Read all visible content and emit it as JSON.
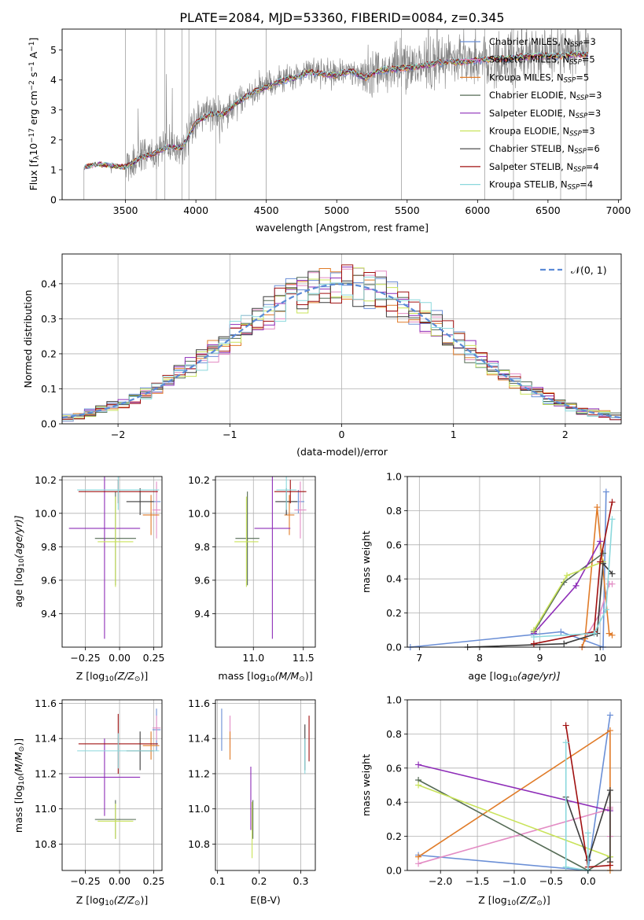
{
  "figure": {
    "title": "PLATE=2084, MJD=53360, FIBERID=0084, z=0.345"
  },
  "colors": {
    "Chabrier MILES": "#6b8fd6",
    "Salpeter MILES": "#e38cc4",
    "Kroupa MILES": "#e07b28",
    "Chabrier ELODIE": "#556b55",
    "Salpeter ELODIE": "#8e2db8",
    "Kroupa ELODIE": "#c9e35a",
    "Chabrier STELIB": "#3c3c3c",
    "Salpeter STELIB": "#a01010",
    "Kroupa STELIB": "#8ad8dc",
    "data": "#808080",
    "gaussian": "#5b8ad6"
  },
  "chart_data": [
    {
      "id": "spectrum",
      "type": "line",
      "xlabel": "wavelength [Angstrom, rest frame]",
      "ylabel": "Flux [f",
      "ylabel_sub": "λ",
      "ylabel_rest": "10",
      "ylabel_sup1": "−17",
      "ylabel_rest2": " erg cm",
      "ylabel_sup2": "−2",
      "ylabel_rest3": " s",
      "ylabel_sup3": "−1",
      "ylabel_rest4": " A",
      "ylabel_sup4": "−1",
      "ylabel_end": "]",
      "xlim": [
        3050,
        7020
      ],
      "ylim": [
        0,
        5.7
      ],
      "xticks": [
        "3500",
        "4000",
        "4500",
        "5000",
        "5500",
        "6000",
        "6500",
        "7000"
      ],
      "yticks": [
        "0",
        "1",
        "2",
        "3",
        "4",
        "5"
      ],
      "legend": [
        {
          "name": "Chabrier MILES",
          "n": "3"
        },
        {
          "name": "Salpeter MILES",
          "n": "5"
        },
        {
          "name": "Kroupa MILES",
          "n": "5"
        },
        {
          "name": "Chabrier ELODIE",
          "n": "3"
        },
        {
          "name": "Salpeter ELODIE",
          "n": "3"
        },
        {
          "name": "Kroupa ELODIE",
          "n": "3"
        },
        {
          "name": "Chabrier STELIB",
          "n": "6"
        },
        {
          "name": "Salpeter STELIB",
          "n": "4"
        },
        {
          "name": "Kroupa STELIB",
          "n": "4"
        }
      ],
      "legend_nlabel": "N",
      "legend_nsub": "SSP",
      "model_points": [
        [
          3200,
          1.1
        ],
        [
          3300,
          1.2
        ],
        [
          3400,
          1.15
        ],
        [
          3500,
          1.1
        ],
        [
          3600,
          1.4
        ],
        [
          3700,
          1.55
        ],
        [
          3800,
          1.8
        ],
        [
          3900,
          1.75
        ],
        [
          4000,
          2.6
        ],
        [
          4100,
          2.9
        ],
        [
          4200,
          2.9
        ],
        [
          4300,
          3.3
        ],
        [
          4400,
          3.6
        ],
        [
          4500,
          3.8
        ],
        [
          4600,
          4.0
        ],
        [
          4700,
          4.1
        ],
        [
          4800,
          4.3
        ],
        [
          4900,
          4.25
        ],
        [
          5000,
          4.2
        ],
        [
          5100,
          4.35
        ],
        [
          5200,
          4.1
        ],
        [
          5300,
          4.35
        ],
        [
          5400,
          4.4
        ],
        [
          5500,
          4.45
        ],
        [
          5600,
          4.5
        ],
        [
          5700,
          4.6
        ],
        [
          5800,
          4.65
        ],
        [
          5900,
          4.65
        ],
        [
          6000,
          4.7
        ],
        [
          6100,
          4.75
        ],
        [
          6200,
          4.75
        ],
        [
          6300,
          4.8
        ],
        [
          6400,
          4.85
        ],
        [
          6500,
          4.85
        ],
        [
          6600,
          4.85
        ],
        [
          6700,
          4.9
        ],
        [
          6790,
          4.9
        ]
      ]
    },
    {
      "id": "residuals",
      "type": "step",
      "xlabel": "(data-model)/error",
      "ylabel": "Normed distribution",
      "xlim": [
        -2.5,
        2.5
      ],
      "ylim": [
        0,
        0.485
      ],
      "xticks": [
        "−2",
        "−1",
        "0",
        "1",
        "2"
      ],
      "yticks": [
        "0.0",
        "0.1",
        "0.2",
        "0.3",
        "0.4"
      ],
      "legend": [
        {
          "name": "𝒩(0, 1)"
        }
      ],
      "bin_width": 0.1
    },
    {
      "id": "age-z",
      "type": "errorbar",
      "xlabel": "Z [log",
      "xlabel_sub": "10",
      "xlabel_rest": "(Z/Z",
      "xlabel_sub2": "⊙",
      "xlabel_end": ")]",
      "ylabel": "age  [log",
      "ylabel_sub": "10",
      "ylabel_rest": "(age/yr)]",
      "xlim": [
        -0.42,
        0.31
      ],
      "ylim": [
        9.2,
        10.22
      ],
      "xticks": [
        "−0.25",
        "0.00",
        "0.25"
      ],
      "yticks": [
        "9.4",
        "9.6",
        "9.8",
        "10.0",
        "10.2"
      ],
      "points": [
        {
          "s": "Chabrier MILES",
          "x": 0.27,
          "xe": 0.03,
          "y": 10.07,
          "ye": 0.07
        },
        {
          "s": "Salpeter MILES",
          "x": 0.27,
          "xe": 0.03,
          "y": 10.02,
          "ye": 0.17
        },
        {
          "s": "Kroupa MILES",
          "x": 0.23,
          "xe": 0.06,
          "y": 9.99,
          "ye": 0.12
        },
        {
          "s": "Chabrier ELODIE",
          "x": -0.03,
          "xe": 0.15,
          "y": 9.85,
          "ye": 0.28
        },
        {
          "s": "Salpeter ELODIE",
          "x": -0.11,
          "xe": 0.26,
          "y": 9.91,
          "ye": 0.66
        },
        {
          "s": "Kroupa ELODIE",
          "x": -0.03,
          "xe": 0.13,
          "y": 9.83,
          "ye": 0.27
        },
        {
          "s": "Chabrier STELIB",
          "x": 0.15,
          "xe": 0.1,
          "y": 10.07,
          "ye": 0.08
        },
        {
          "s": "Salpeter STELIB",
          "x": -0.01,
          "xe": 0.29,
          "y": 10.13,
          "ye": 0.07
        },
        {
          "s": "Kroupa STELIB",
          "x": -0.01,
          "xe": 0.3,
          "y": 10.14,
          "ye": 0.12
        }
      ]
    },
    {
      "id": "age-mass",
      "type": "errorbar",
      "xlabel": "mass [log",
      "xlabel_sub": "10",
      "xlabel_rest": "(M/M",
      "xlabel_sub2": "⊙",
      "xlabel_end": ")]",
      "ylabel": "",
      "xlim": [
        10.62,
        11.62
      ],
      "ylim": [
        9.2,
        10.22
      ],
      "xticks": [
        "11.0",
        "11.5"
      ],
      "yticks": [
        "9.4",
        "9.6",
        "9.8",
        "10.0",
        "10.2"
      ],
      "points": [
        {
          "s": "Chabrier MILES",
          "x": 11.45,
          "xe": 0.06,
          "y": 10.07,
          "ye": 0.07
        },
        {
          "s": "Salpeter MILES",
          "x": 11.47,
          "xe": 0.06,
          "y": 10.02,
          "ye": 0.17
        },
        {
          "s": "Kroupa MILES",
          "x": 11.36,
          "xe": 0.05,
          "y": 9.99,
          "ye": 0.12
        },
        {
          "s": "Chabrier ELODIE",
          "x": 10.94,
          "xe": 0.12,
          "y": 9.85,
          "ye": 0.28
        },
        {
          "s": "Salpeter ELODIE",
          "x": 11.19,
          "xe": 0.18,
          "y": 9.91,
          "ye": 0.66
        },
        {
          "s": "Kroupa ELODIE",
          "x": 10.93,
          "xe": 0.12,
          "y": 9.83,
          "ye": 0.27
        },
        {
          "s": "Chabrier STELIB",
          "x": 11.33,
          "xe": 0.11,
          "y": 10.07,
          "ye": 0.08
        },
        {
          "s": "Salpeter STELIB",
          "x": 11.37,
          "xe": 0.16,
          "y": 10.13,
          "ye": 0.07
        },
        {
          "s": "Kroupa STELIB",
          "x": 11.33,
          "xe": 0.1,
          "y": 10.14,
          "ye": 0.12
        }
      ]
    },
    {
      "id": "mw-age",
      "type": "line",
      "xlabel": "age  [log",
      "xlabel_sub": "10",
      "xlabel_rest": "(age/yr)]",
      "ylabel": "mass weight",
      "xlim": [
        6.8,
        10.35
      ],
      "ylim": [
        0,
        1.0
      ],
      "xticks": [
        "7",
        "8",
        "9",
        "10"
      ],
      "yticks": [
        "0.0",
        "0.2",
        "0.4",
        "0.6",
        "0.8",
        "1.0"
      ],
      "series": [
        {
          "s": "Chabrier MILES",
          "x": [
            6.85,
            9.35,
            10.05,
            10.1
          ],
          "y": [
            0.0,
            0.09,
            0.0,
            0.91
          ]
        },
        {
          "s": "Salpeter MILES",
          "x": [
            9.7,
            9.75,
            10.0,
            10.15,
            10.2
          ],
          "y": [
            0.0,
            0.05,
            0.2,
            0.37,
            0.37
          ]
        },
        {
          "s": "Kroupa MILES",
          "x": [
            9.7,
            9.75,
            9.95,
            10.15,
            10.2
          ],
          "y": [
            0.0,
            0.05,
            0.82,
            0.08,
            0.07
          ]
        },
        {
          "s": "Chabrier ELODIE",
          "x": [
            8.9,
            9.4,
            10.05
          ],
          "y": [
            0.09,
            0.38,
            0.55
          ]
        },
        {
          "s": "Salpeter ELODIE",
          "x": [
            8.9,
            9.6,
            10.0
          ],
          "y": [
            0.08,
            0.36,
            0.62
          ]
        },
        {
          "s": "Kroupa ELODIE",
          "x": [
            8.9,
            9.45,
            10.05
          ],
          "y": [
            0.1,
            0.42,
            0.5
          ]
        },
        {
          "s": "Chabrier STELIB",
          "x": [
            7.8,
            9.4,
            9.95,
            10.05,
            10.2
          ],
          "y": [
            0.0,
            0.02,
            0.08,
            0.49,
            0.43
          ]
        },
        {
          "s": "Salpeter STELIB",
          "x": [
            8.9,
            9.9,
            10.0,
            10.2
          ],
          "y": [
            0.02,
            0.09,
            0.5,
            0.85
          ]
        },
        {
          "s": "Kroupa STELIB",
          "x": [
            8.9,
            9.9,
            10.1,
            10.2
          ],
          "y": [
            0.06,
            0.08,
            0.22,
            0.75
          ]
        }
      ]
    },
    {
      "id": "mass-z",
      "type": "errorbar",
      "xlabel": "Z [log",
      "xlabel_sub": "10",
      "xlabel_rest": "(Z/Z",
      "xlabel_sub2": "⊙",
      "xlabel_end": ")]",
      "ylabel": "mass [log",
      "ylabel_sub": "10",
      "ylabel_rest": "(M/M",
      "ylabel_sub2": "⊙",
      "ylabel_end": ")]",
      "xlim": [
        -0.42,
        0.31
      ],
      "ylim": [
        10.65,
        11.62
      ],
      "xticks": [
        "−0.25",
        "0.00",
        "0.25"
      ],
      "yticks": [
        "10.8",
        "11.0",
        "11.2",
        "11.4",
        "11.6"
      ],
      "points": [
        {
          "s": "Chabrier MILES",
          "x": 0.27,
          "xe": 0.03,
          "y": 11.45,
          "ye": 0.12
        },
        {
          "s": "Salpeter MILES",
          "x": 0.27,
          "xe": 0.03,
          "y": 11.46,
          "ye": 0.07
        },
        {
          "s": "Kroupa MILES",
          "x": 0.23,
          "xe": 0.06,
          "y": 11.36,
          "ye": 0.08
        },
        {
          "s": "Chabrier ELODIE",
          "x": -0.03,
          "xe": 0.15,
          "y": 10.94,
          "ye": 0.11
        },
        {
          "s": "Salpeter ELODIE",
          "x": -0.11,
          "xe": 0.26,
          "y": 11.18,
          "ye": 0.22
        },
        {
          "s": "Kroupa ELODIE",
          "x": -0.03,
          "xe": 0.13,
          "y": 10.93,
          "ye": 0.1
        },
        {
          "s": "Chabrier STELIB",
          "x": 0.15,
          "xe": 0.1,
          "y": 11.33,
          "ye": 0.11
        },
        {
          "s": "Salpeter STELIB",
          "x": -0.01,
          "xe": 0.29,
          "y": 11.37,
          "ye": 0.17
        },
        {
          "s": "Kroupa STELIB",
          "x": -0.01,
          "xe": 0.3,
          "y": 11.33,
          "ye": 0.1
        }
      ]
    },
    {
      "id": "mass-ebv",
      "type": "errorbar",
      "xlabel": "E(B-V)",
      "ylabel": "",
      "xlim": [
        0.095,
        0.335
      ],
      "ylim": [
        10.65,
        11.62
      ],
      "xticks": [
        "0.1",
        "0.2",
        "0.3"
      ],
      "yticks": [
        "10.8",
        "11.0",
        "11.2",
        "11.4",
        "11.6"
      ],
      "points": [
        {
          "s": "Chabrier MILES",
          "x": 0.11,
          "xe": 0,
          "y": 11.45,
          "ye": 0.12
        },
        {
          "s": "Salpeter MILES",
          "x": 0.13,
          "xe": 0,
          "y": 11.44,
          "ye": 0.09
        },
        {
          "s": "Kroupa MILES",
          "x": 0.13,
          "xe": 0,
          "y": 11.36,
          "ye": 0.08
        },
        {
          "s": "Chabrier ELODIE",
          "x": 0.185,
          "xe": 0,
          "y": 10.94,
          "ye": 0.11
        },
        {
          "s": "Salpeter ELODIE",
          "x": 0.18,
          "xe": 0,
          "y": 11.06,
          "ye": 0.18
        },
        {
          "s": "Kroupa ELODIE",
          "x": 0.183,
          "xe": 0,
          "y": 10.88,
          "ye": 0.16
        },
        {
          "s": "Chabrier STELIB",
          "x": 0.31,
          "xe": 0,
          "y": 11.35,
          "ye": 0.13
        },
        {
          "s": "Salpeter STELIB",
          "x": 0.32,
          "xe": 0,
          "y": 11.4,
          "ye": 0.13
        },
        {
          "s": "Kroupa STELIB",
          "x": 0.31,
          "xe": 0,
          "y": 11.3,
          "ye": 0.1
        }
      ]
    },
    {
      "id": "mw-z",
      "type": "line",
      "xlabel": "Z [log",
      "xlabel_sub": "10",
      "xlabel_rest": "(Z/Z",
      "xlabel_sub2": "⊙",
      "xlabel_end": ")]",
      "ylabel": "mass weight",
      "xlim": [
        -2.45,
        0.45
      ],
      "ylim": [
        0,
        1.0
      ],
      "xticks": [
        "−2.0",
        "−1.5",
        "−1.0",
        "−0.5",
        "0.0"
      ],
      "yticks": [
        "0.0",
        "0.2",
        "0.4",
        "0.6",
        "0.8",
        "1.0"
      ],
      "series": [
        {
          "s": "Chabrier MILES",
          "x": [
            -2.3,
            0.0,
            0.3
          ],
          "y": [
            0.09,
            0.0,
            0.91
          ]
        },
        {
          "s": "Salpeter MILES",
          "x": [
            -2.3,
            0.3,
            0.3,
            0.3
          ],
          "y": [
            0.04,
            0.36,
            0.2,
            0.37
          ]
        },
        {
          "s": "Kroupa MILES",
          "x": [
            -2.3,
            0.3,
            0.3,
            0.3
          ],
          "y": [
            0.08,
            0.82,
            0.05,
            0.0
          ]
        },
        {
          "s": "Chabrier ELODIE",
          "x": [
            -2.3,
            0.0,
            0.3
          ],
          "y": [
            0.53,
            0.0,
            0.08
          ]
        },
        {
          "s": "Salpeter ELODIE",
          "x": [
            -2.3,
            0.3
          ],
          "y": [
            0.62,
            0.35
          ]
        },
        {
          "s": "Kroupa ELODIE",
          "x": [
            -2.3,
            0.3
          ],
          "y": [
            0.5,
            0.08
          ]
        },
        {
          "s": "Chabrier STELIB",
          "x": [
            -0.3,
            0.0,
            0.3,
            0.3
          ],
          "y": [
            0.43,
            0.06,
            0.47,
            0.05
          ]
        },
        {
          "s": "Salpeter STELIB",
          "x": [
            -0.3,
            0.0,
            0.3
          ],
          "y": [
            0.85,
            0.02,
            0.03
          ]
        },
        {
          "s": "Kroupa STELIB",
          "x": [
            -0.3,
            -0.3,
            0.0,
            0.0
          ],
          "y": [
            0.75,
            0.02,
            0.0,
            0.22
          ]
        }
      ]
    }
  ]
}
